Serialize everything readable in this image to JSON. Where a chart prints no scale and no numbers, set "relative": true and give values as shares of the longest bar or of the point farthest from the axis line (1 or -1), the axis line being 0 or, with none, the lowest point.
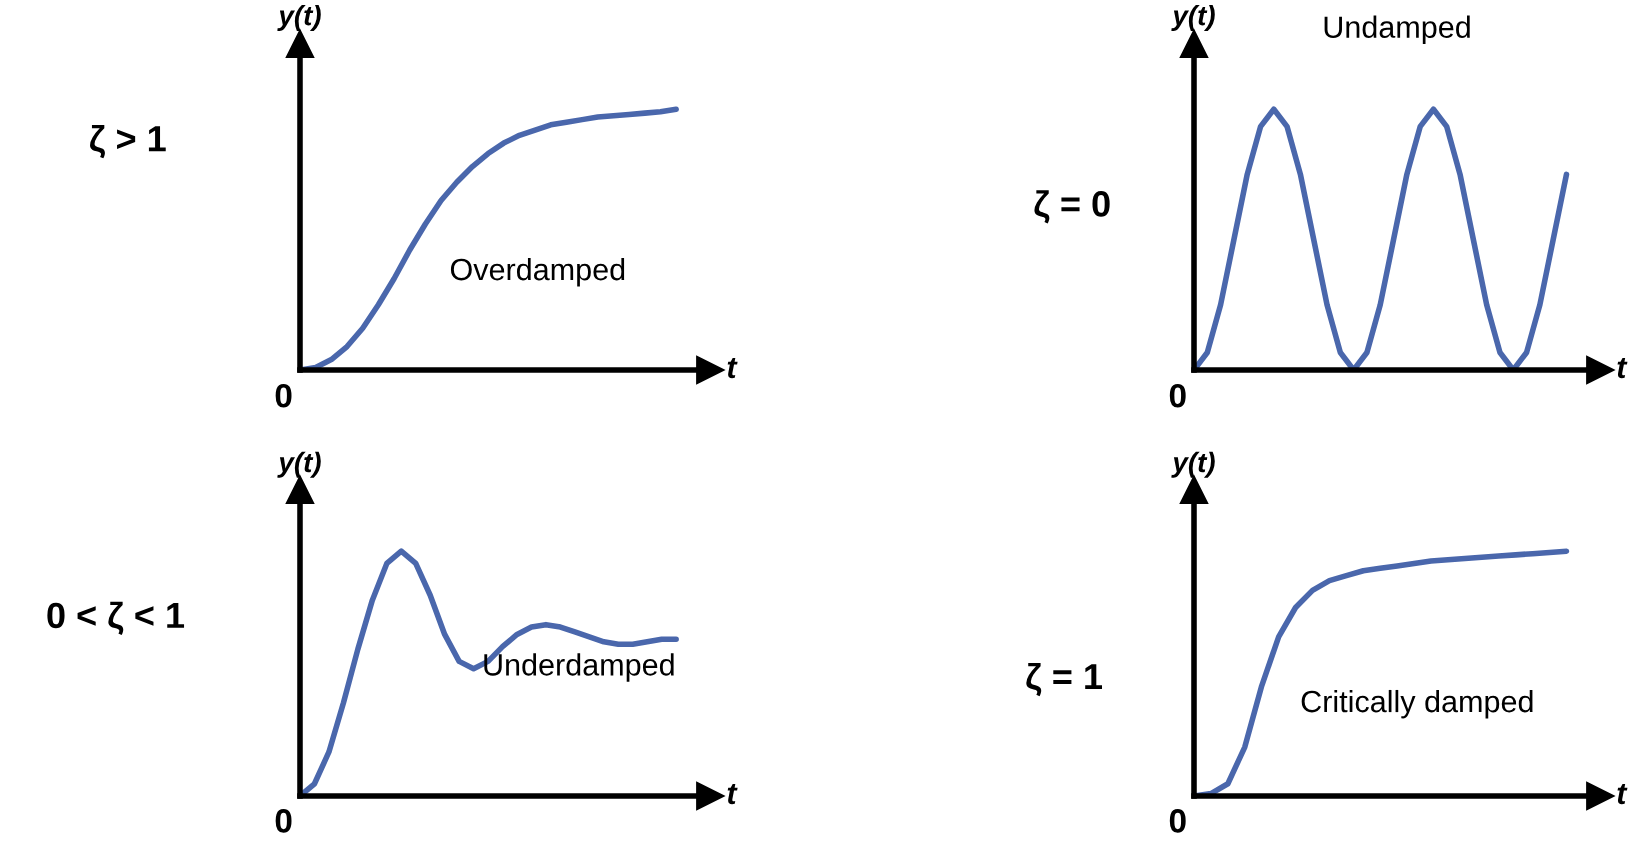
{
  "chart_data": [
    {
      "type": "line",
      "relative": true,
      "xlabel": "t",
      "ylabel": "y(t)",
      "annotations": [
        "ζ > 1",
        "Overdamped",
        "0"
      ],
      "categories": [
        null,
        null,
        null,
        null,
        null,
        null,
        null,
        null,
        null,
        null,
        null,
        null,
        null,
        null,
        null,
        null,
        null,
        null,
        null,
        null,
        null,
        null,
        null,
        null,
        null
      ],
      "series": [
        {
          "color": "#4a67ac",
          "values": [
            0,
            0.01,
            0.04,
            0.09,
            0.16,
            0.25,
            0.35,
            0.46,
            0.56,
            0.65,
            0.72,
            0.78,
            0.83,
            0.87,
            0.9,
            0.92,
            0.94,
            0.95,
            0.96,
            0.97,
            0.975,
            0.98,
            0.985,
            0.99,
            1.0
          ]
        }
      ]
    },
    {
      "type": "line",
      "relative": true,
      "xlabel": "t",
      "ylabel": "y(t)",
      "annotations": [
        "ζ = 0",
        "Undamped",
        "0"
      ],
      "categories": [
        null,
        null,
        null,
        null,
        null,
        null,
        null,
        null,
        null,
        null,
        null,
        null,
        null,
        null,
        null,
        null,
        null,
        null,
        null,
        null,
        null,
        null,
        null,
        null,
        null,
        null,
        null,
        null,
        null
      ],
      "series": [
        {
          "color": "#4a67ac",
          "values": [
            0,
            0.067,
            0.25,
            0.5,
            0.75,
            0.933,
            1,
            0.933,
            0.75,
            0.5,
            0.25,
            0.067,
            0,
            0.067,
            0.25,
            0.5,
            0.75,
            0.933,
            1,
            0.933,
            0.75,
            0.5,
            0.25,
            0.067,
            0,
            0.067,
            0.25,
            0.5,
            0.75
          ]
        }
      ]
    },
    {
      "type": "line",
      "relative": true,
      "xlabel": "t",
      "ylabel": "y(t)",
      "annotations": [
        "0 < ζ < 1",
        "Underdamped",
        "0"
      ],
      "categories": [
        null,
        null,
        null,
        null,
        null,
        null,
        null,
        null,
        null,
        null,
        null,
        null,
        null,
        null,
        null,
        null,
        null,
        null,
        null,
        null,
        null,
        null,
        null,
        null,
        null,
        null,
        null
      ],
      "series": [
        {
          "color": "#4a67ac",
          "values": [
            0,
            0.05,
            0.18,
            0.38,
            0.6,
            0.8,
            0.95,
            1.0,
            0.95,
            0.82,
            0.66,
            0.55,
            0.52,
            0.55,
            0.61,
            0.66,
            0.69,
            0.7,
            0.69,
            0.67,
            0.65,
            0.63,
            0.62,
            0.62,
            0.63,
            0.64,
            0.64
          ]
        }
      ]
    },
    {
      "type": "line",
      "relative": true,
      "xlabel": "t",
      "ylabel": "y(t)",
      "annotations": [
        "ζ = 1",
        "Critically damped",
        "0"
      ],
      "categories": [
        null,
        null,
        null,
        null,
        null,
        null,
        null,
        null,
        null,
        null,
        null,
        null,
        null,
        null,
        null,
        null,
        null,
        null,
        null,
        null,
        null,
        null,
        null
      ],
      "series": [
        {
          "color": "#4a67ac",
          "values": [
            0,
            0.01,
            0.05,
            0.2,
            0.45,
            0.65,
            0.77,
            0.84,
            0.88,
            0.9,
            0.92,
            0.93,
            0.94,
            0.95,
            0.96,
            0.965,
            0.97,
            0.975,
            0.98,
            0.985,
            0.99,
            0.995,
            1.0
          ]
        }
      ]
    }
  ]
}
